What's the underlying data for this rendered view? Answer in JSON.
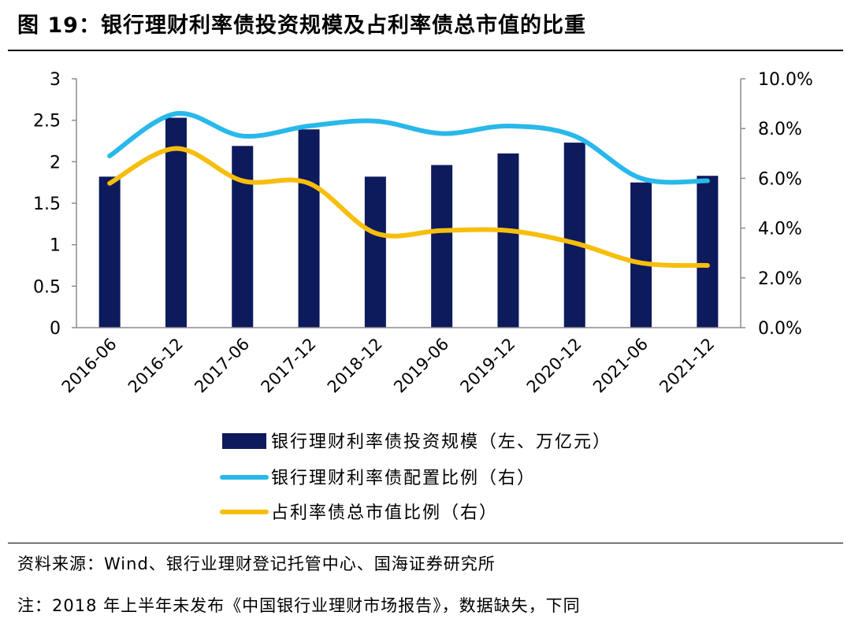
{
  "title": "图 19：银行理财利率债投资规模及占利率债总市值的比重",
  "source": "资料来源：Wind、银行业理财登记托管中心、国海证券研究所",
  "note": "注：2018 年上半年未发布《中国银行业理财市场报告》，数据缺失，下同",
  "chart_data": {
    "type": "bar",
    "categories": [
      "2016-06",
      "2016-12",
      "2017-06",
      "2017-12",
      "2018-12",
      "2019-06",
      "2019-12",
      "2020-12",
      "2021-06",
      "2021-12"
    ],
    "y_left": {
      "ticks": [
        "0",
        "0.5",
        "1",
        "1.5",
        "2",
        "2.5",
        "3"
      ],
      "range": [
        0,
        3
      ]
    },
    "y_right": {
      "ticks": [
        "0.0%",
        "2.0%",
        "4.0%",
        "6.0%",
        "8.0%",
        "10.0%"
      ],
      "range": [
        0,
        10
      ]
    },
    "series": [
      {
        "name": "银行理财利率债投资规模（左、万亿元）",
        "kind": "bar",
        "axis": "left",
        "color": "#0d1a5c",
        "values": [
          1.82,
          2.53,
          2.19,
          2.39,
          1.82,
          1.96,
          2.1,
          2.23,
          1.75,
          1.83
        ]
      },
      {
        "name": "银行理财利率债配置比例（右）",
        "kind": "line",
        "axis": "right",
        "color": "#29b8ea",
        "values": [
          6.9,
          8.6,
          7.7,
          8.1,
          8.3,
          7.8,
          8.1,
          7.7,
          6.0,
          5.9
        ]
      },
      {
        "name": "占利率债总市值比例（右）",
        "kind": "line",
        "axis": "right",
        "color": "#f7be0d",
        "values": [
          5.8,
          7.2,
          5.9,
          5.8,
          3.8,
          3.9,
          3.9,
          3.4,
          2.6,
          2.5
        ]
      }
    ],
    "grid": false,
    "legend_position": "bottom"
  }
}
